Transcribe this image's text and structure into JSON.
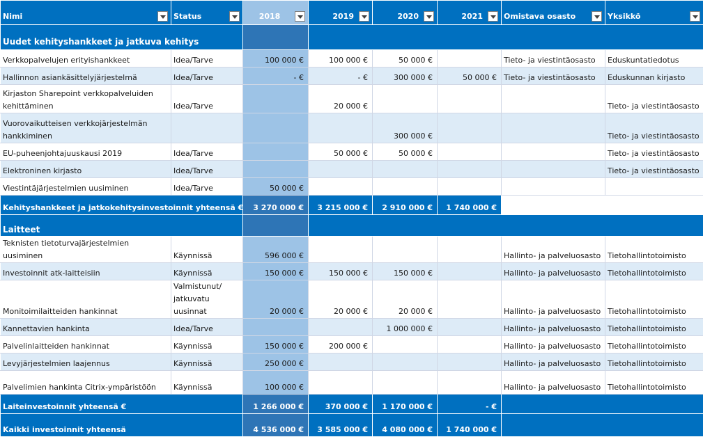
{
  "headers": {
    "name": "Nimi",
    "status": "Status",
    "y2018": "2018",
    "y2019": "2019",
    "y2020": "2020",
    "y2021": "2021",
    "dept": "Omistava osasto",
    "unit": "Yksikkö"
  },
  "sections": {
    "dev": "Uudet kehityshankkeet ja jatkuva kehitys",
    "hw": "Laitteet"
  },
  "dev_rows": [
    {
      "name": "Verkkopalvelujen erityishankkeet",
      "status": "Idea/Tarve",
      "y2018": "100 000 €",
      "y2019": "100 000 €",
      "y2020": "50 000 €",
      "y2021": "",
      "dept": "Tieto- ja viestintäosasto",
      "unit": "Eduskuntatiedotus"
    },
    {
      "name": "Hallinnon asiankäsittelyjärjestelmä",
      "status": "Idea/Tarve",
      "y2018": "- €",
      "y2019": "- €",
      "y2020": "300 000 €",
      "y2021": "50 000 €",
      "dept": "Tieto- ja viestintäosasto",
      "unit": "Eduskunnan kirjasto"
    },
    {
      "name": "Kirjaston Sharepoint verkkopalveluiden kehittäminen",
      "status": "Idea/Tarve",
      "y2018": "",
      "y2019": "20 000 €",
      "y2020": "",
      "y2021": "",
      "dept": "",
      "unit": "Tieto- ja viestintäosasto"
    },
    {
      "name": "Vuorovaikutteisen verkkojärjestelmän hankkiminen",
      "status": "",
      "y2018": "",
      "y2019": "",
      "y2020": "300 000 €",
      "y2021": "",
      "dept": "",
      "unit": "Tieto- ja viestintäosasto"
    },
    {
      "name": "EU-puheenjohtajuuskausi 2019",
      "status": "Idea/Tarve",
      "y2018": "",
      "y2019": "50 000 €",
      "y2020": "50 000 €",
      "y2021": "",
      "dept": "",
      "unit": "Tieto- ja viestintäosasto"
    },
    {
      "name": "Elektroninen kirjasto",
      "status": "Idea/Tarve",
      "y2018": "",
      "y2019": "",
      "y2020": "",
      "y2021": "",
      "dept": "",
      "unit": "Tieto- ja viestintäosasto"
    },
    {
      "name": "Viestintäjärjestelmien uusiminen",
      "status": "Idea/Tarve",
      "y2018": "50 000 €",
      "y2019": "",
      "y2020": "",
      "y2021": "",
      "dept": "",
      "unit": ""
    }
  ],
  "dev_total": {
    "label": "Kehityshankkeet ja jatkokehitysinvestoinnit yhteensä €",
    "y2018": "3 270 000 €",
    "y2019": "3 215 000 €",
    "y2020": "2 910 000 €",
    "y2021": "1 740 000 €"
  },
  "hw_rows": [
    {
      "name": "Teknisten tietoturvajärjestelmien uusiminen",
      "status": "Käynnissä",
      "y2018": "596 000 €",
      "y2019": "",
      "y2020": "",
      "y2021": "",
      "dept": "Hallinto- ja palveluosasto",
      "unit": "Tietohallintotoimisto"
    },
    {
      "name": "Investoinnit atk-laitteisiin",
      "status": "Käynnissä",
      "y2018": "150 000 €",
      "y2019": "150 000 €",
      "y2020": "150 000 €",
      "y2021": "",
      "dept": "Hallinto- ja palveluosasto",
      "unit": "Tietohallintotoimisto"
    },
    {
      "name": "Monitoimilaitteiden hankinnat",
      "status": "Valmistunut/ jatkuvatu uusinnat",
      "y2018": "20 000 €",
      "y2019": "20 000 €",
      "y2020": "20 000 €",
      "y2021": "",
      "dept": "Hallinto- ja palveluosasto",
      "unit": "Tietohallintotoimisto"
    },
    {
      "name": "Kannettavien hankinta",
      "status": "Idea/Tarve",
      "y2018": "",
      "y2019": "",
      "y2020": "1 000 000 €",
      "y2021": "",
      "dept": "Hallinto- ja palveluosasto",
      "unit": "Tietohallintotoimisto"
    },
    {
      "name": "Palvelinlaitteiden hankinnat",
      "status": "Käynnissä",
      "y2018": "150 000 €",
      "y2019": "200 000 €",
      "y2020": "",
      "y2021": "",
      "dept": "Hallinto- ja palveluosasto",
      "unit": "Tietohallintotoimisto"
    },
    {
      "name": "Levyjärjestelmien laajennus",
      "status": "Käynnissä",
      "y2018": "250 000 €",
      "y2019": "",
      "y2020": "",
      "y2021": "",
      "dept": "Hallinto- ja palveluosasto",
      "unit": "Tietohallintotoimisto"
    },
    {
      "name": "Palvelimien hankinta Citrix-ympäristöön",
      "status": "Käynnissä",
      "y2018": "100 000 €",
      "y2019": "",
      "y2020": "",
      "y2021": "",
      "dept": "Hallinto- ja palveluosasto",
      "unit": "Tietohallintotoimisto"
    }
  ],
  "hw_total": {
    "label": "Laiteinvestoinnit yhteensä €",
    "y2018": "1 266 000 €",
    "y2019": "370 000 €",
    "y2020": "1 170 000 €",
    "y2021": "- €"
  },
  "grand_total": {
    "label": "Kaikki investoinnit yhteensä",
    "y2018": "4 536 000 €",
    "y2019": "3 585 000 €",
    "y2020": "4 080 000 €",
    "y2021": "1 740 000 €"
  }
}
